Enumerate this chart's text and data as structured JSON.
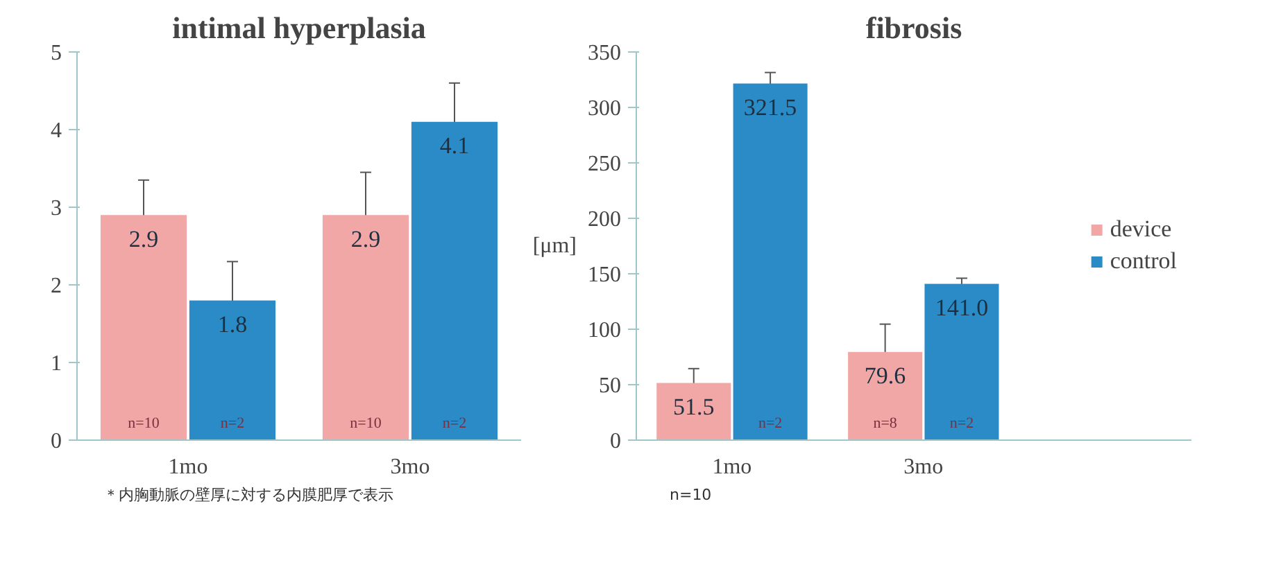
{
  "chart_data": [
    {
      "type": "bar",
      "title": "intimal hyperplasia",
      "categories": [
        "1mo",
        "3mo"
      ],
      "series": [
        {
          "color": "#f2a7a7",
          "values": [
            2.9,
            2.9
          ],
          "errors": [
            0.45,
            0.55
          ]
        },
        {
          "color": "#2a8bc6",
          "values": [
            1.8,
            4.1
          ],
          "errors": [
            0.5,
            0.5
          ]
        }
      ],
      "ylim": [
        0,
        5
      ],
      "yticks": [
        0,
        1,
        2,
        3,
        4,
        5
      ],
      "grid": false,
      "legend": false,
      "data_labels": true,
      "annotations": [
        {
          "text": "n=10",
          "x": "1mo",
          "y": 0
        },
        {
          "text": "n=2",
          "x": "1mo",
          "y": 0
        },
        {
          "text": "n=10",
          "x": "3mo",
          "y": 0
        },
        {
          "text": "n=2",
          "x": "3mo",
          "y": 0
        },
        "＊内胸動脈の壁厚に対する内膜肥厚で表示"
      ]
    },
    {
      "type": "bar",
      "title": "fibrosis",
      "ylabel": "[μm]",
      "categories": [
        "1mo",
        "3mo"
      ],
      "series": [
        {
          "name": "device",
          "color": "#f2a7a7",
          "values": [
            51.5,
            79.6
          ],
          "errors": [
            13,
            25
          ],
          "value_labels": [
            "51.5",
            "79.6"
          ]
        },
        {
          "name": "control",
          "color": "#2a8bc6",
          "values": [
            321.5,
            141.0
          ],
          "errors": [
            10,
            5
          ],
          "value_labels": [
            "321.5",
            "141.0"
          ]
        }
      ],
      "ylim": [
        0,
        350
      ],
      "yticks": [
        0,
        50,
        100,
        150,
        200,
        250,
        300,
        350
      ],
      "grid": false,
      "legend": "right",
      "annotations": [
        "n=10",
        {
          "text": "n=2",
          "x": "1mo",
          "y": 0
        },
        {
          "text": "n=8",
          "x": "3mo",
          "y": 0
        },
        {
          "text": "n=2",
          "x": "3mo",
          "y": 0
        }
      ]
    }
  ]
}
